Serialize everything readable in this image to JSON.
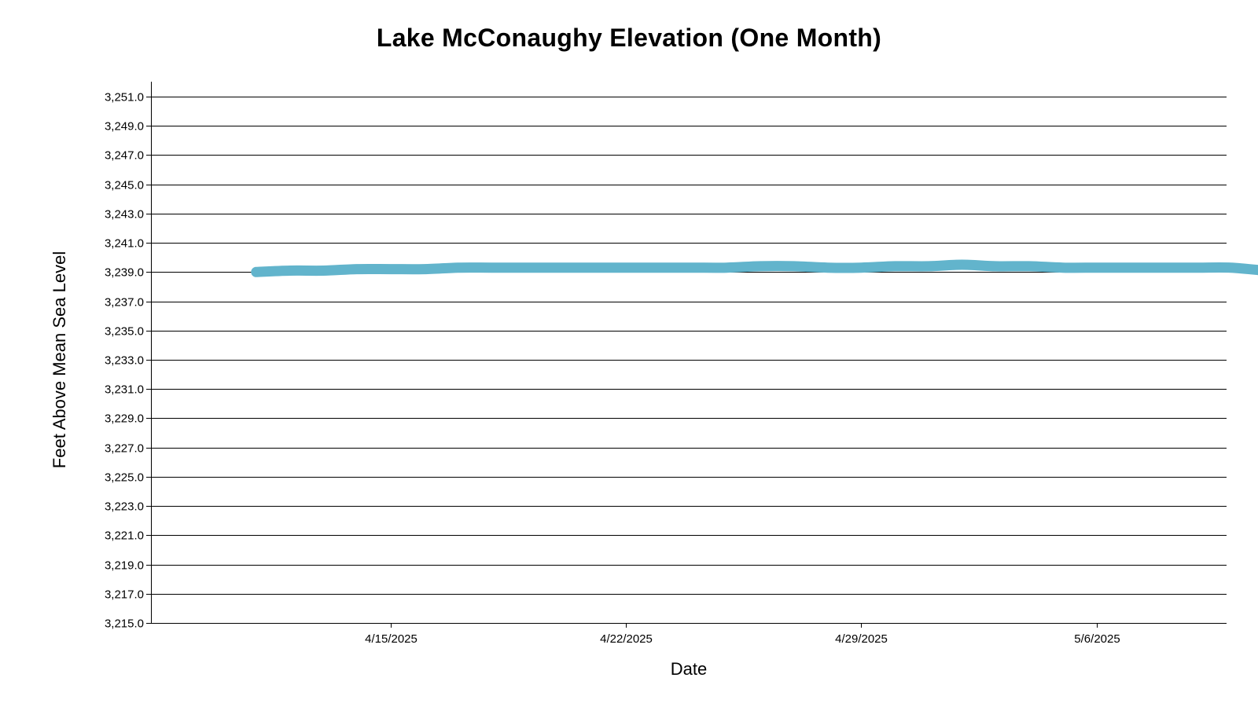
{
  "chart_data": {
    "type": "line",
    "title": "Lake McConaughy Elevation (One Month)",
    "xlabel": "Date",
    "ylabel": "Feet Above Mean Sea Level",
    "ylim": [
      3215.0,
      3251.0
    ],
    "y_ticks": [
      "3,215.0",
      "3,217.0",
      "3,219.0",
      "3,221.0",
      "3,223.0",
      "3,225.0",
      "3,227.0",
      "3,229.0",
      "3,231.0",
      "3,233.0",
      "3,235.0",
      "3,237.0",
      "3,239.0",
      "3,241.0",
      "3,243.0",
      "3,245.0",
      "3,247.0",
      "3,249.0",
      "3,251.0"
    ],
    "x_ticks": [
      "4/15/2025",
      "4/22/2025",
      "4/29/2025",
      "5/6/2025"
    ],
    "grid": "horizontal",
    "series": [
      {
        "color": "#62b4cc",
        "x": [
          "4/11/2025",
          "4/12/2025",
          "4/13/2025",
          "4/14/2025",
          "4/15/2025",
          "4/16/2025",
          "4/17/2025",
          "4/18/2025",
          "4/19/2025",
          "4/20/2025",
          "4/21/2025",
          "4/22/2025",
          "4/23/2025",
          "4/24/2025",
          "4/25/2025",
          "4/26/2025",
          "4/27/2025",
          "4/28/2025",
          "4/29/2025",
          "4/30/2025",
          "5/1/2025",
          "5/2/2025",
          "5/3/2025",
          "5/4/2025",
          "5/5/2025",
          "5/6/2025",
          "5/7/2025",
          "5/8/2025",
          "5/9/2025",
          "5/10/2025",
          "5/11/2025"
        ],
        "values": [
          3239.0,
          3239.1,
          3239.1,
          3239.2,
          3239.2,
          3239.2,
          3239.3,
          3239.3,
          3239.3,
          3239.3,
          3239.3,
          3239.3,
          3239.3,
          3239.3,
          3239.3,
          3239.4,
          3239.4,
          3239.3,
          3239.3,
          3239.4,
          3239.4,
          3239.5,
          3239.4,
          3239.4,
          3239.3,
          3239.3,
          3239.3,
          3239.3,
          3239.3,
          3239.3,
          3239.1
        ]
      }
    ]
  }
}
